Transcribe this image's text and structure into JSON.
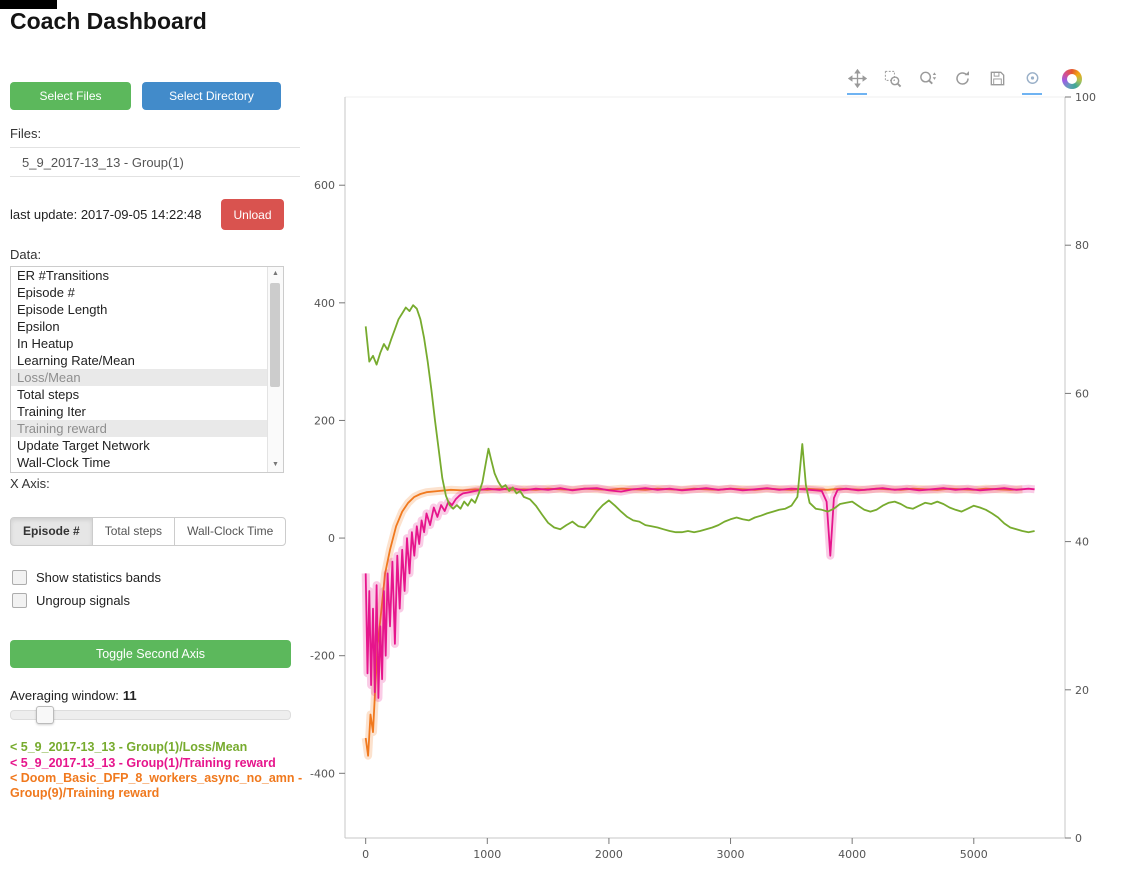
{
  "header": {
    "title": "Coach Dashboard"
  },
  "sidebar": {
    "select_files_label": "Select Files",
    "select_directory_label": "Select Directory",
    "files_label": "Files:",
    "file_selector_value": "5_9_2017-13_13 - Group(1)",
    "last_update": "last update: 2017-09-05 14:22:48",
    "unload_label": "Unload",
    "data_label": "Data:",
    "data_items": [
      {
        "label": "ER #Transitions",
        "selected": false
      },
      {
        "label": "Episode #",
        "selected": false
      },
      {
        "label": "Episode Length",
        "selected": false
      },
      {
        "label": "Epsilon",
        "selected": false
      },
      {
        "label": "In Heatup",
        "selected": false
      },
      {
        "label": "Learning Rate/Mean",
        "selected": false
      },
      {
        "label": "Loss/Mean",
        "selected": true
      },
      {
        "label": "Total steps",
        "selected": false
      },
      {
        "label": "Training Iter",
        "selected": false
      },
      {
        "label": "Training reward",
        "selected": true
      },
      {
        "label": "Update Target Network",
        "selected": false
      },
      {
        "label": "Wall-Clock Time",
        "selected": false
      }
    ],
    "scrollbar": {
      "up_icon": "▲",
      "down_icon": "▼"
    },
    "x_axis_label": "X Axis:",
    "x_axis_options": [
      {
        "label": "Episode #",
        "active": true
      },
      {
        "label": "Total steps",
        "active": false
      },
      {
        "label": "Wall-Clock Time",
        "active": false
      }
    ],
    "checkboxes": [
      {
        "label": "Show statistics bands",
        "checked": false
      },
      {
        "label": "Ungroup signals",
        "checked": false
      }
    ],
    "toggle_second_axis_label": "Toggle Second Axis",
    "averaging_window_label": "Averaging window:",
    "averaging_window_value": "11",
    "legend": [
      {
        "text": "< 5_9_2017-13_13 - Group(1)/Loss/Mean",
        "color": "#77ab2e"
      },
      {
        "text": "< 5_9_2017-13_13 - Group(1)/Training reward",
        "color": "#e6158c"
      },
      {
        "text": "< Doom_Basic_DFP_8_workers_async_no_amn - Group(9)/Training reward",
        "color": "#f0791e"
      }
    ]
  },
  "toolbar": {
    "tools": [
      {
        "name": "pan",
        "active": true
      },
      {
        "name": "box-zoom",
        "active": false
      },
      {
        "name": "wheel-zoom",
        "active": false
      },
      {
        "name": "reset",
        "active": false
      },
      {
        "name": "save",
        "active": false
      },
      {
        "name": "hover",
        "active": true
      }
    ]
  },
  "chart_data": {
    "type": "line",
    "title": "",
    "xlabel": "",
    "ylabel": "",
    "grid": false,
    "x_ticks": [
      0,
      1000,
      2000,
      3000,
      4000,
      5000
    ],
    "left_y_ticks": [
      -400,
      -200,
      0,
      200,
      400,
      600
    ],
    "right_y_ticks": [
      0,
      20,
      40,
      60,
      80,
      100
    ],
    "xlim": [
      -170,
      5750
    ],
    "left_ylim": [
      -510,
      750
    ],
    "right_ylim": [
      0,
      100
    ],
    "series": [
      {
        "name": "Doom_Basic_DFP_8_workers_async_no_amn - Group(9)/Training reward",
        "color": "#f0791e",
        "axis": "left",
        "band": true,
        "x": [
          0,
          20,
          40,
          60,
          80,
          100,
          130,
          160,
          200,
          250,
          300,
          350,
          400,
          450,
          500,
          600,
          700,
          800,
          900,
          1000,
          1100,
          1200,
          1300,
          1400,
          1500,
          1600,
          1700,
          1800,
          1900,
          2000,
          2100,
          2200,
          2300,
          2400,
          2500,
          2600,
          2700,
          2800,
          2900,
          3000,
          3100,
          3200,
          3300,
          3400,
          3500,
          3600,
          3700,
          3800,
          3900,
          4000,
          4100,
          4200,
          4300,
          4400,
          4500,
          4600,
          4700,
          4800,
          4900,
          5000,
          5100,
          5200,
          5300,
          5400
        ],
        "y": [
          -340,
          -370,
          -300,
          -330,
          -250,
          -180,
          -120,
          -60,
          -20,
          20,
          45,
          60,
          70,
          75,
          78,
          80,
          82,
          81,
          83,
          82,
          84,
          82,
          83,
          82,
          84,
          83,
          82,
          84,
          83,
          82,
          84,
          83,
          82,
          84,
          83,
          82,
          84,
          83,
          82,
          84,
          83,
          82,
          84,
          83,
          82,
          84,
          83,
          82,
          84,
          83,
          82,
          84,
          83,
          82,
          84,
          83,
          82,
          84,
          83,
          82,
          84,
          83,
          82,
          83
        ]
      },
      {
        "name": "5_9_2017-13_13 - Group(1)/Training reward",
        "color": "#e6158c",
        "axis": "left",
        "band": true,
        "x": [
          0,
          15,
          30,
          45,
          60,
          75,
          90,
          105,
          120,
          135,
          150,
          165,
          180,
          200,
          220,
          240,
          260,
          280,
          300,
          320,
          340,
          360,
          380,
          400,
          420,
          440,
          460,
          480,
          500,
          530,
          560,
          590,
          620,
          650,
          680,
          710,
          740,
          770,
          800,
          850,
          900,
          950,
          1000,
          1100,
          1200,
          1300,
          1400,
          1500,
          1600,
          1700,
          1800,
          1900,
          2000,
          2100,
          2200,
          2300,
          2400,
          2500,
          2600,
          2700,
          2800,
          2900,
          3000,
          3100,
          3200,
          3300,
          3400,
          3500,
          3600,
          3700,
          3750,
          3790,
          3820,
          3850,
          3880,
          3950,
          4050,
          4150,
          4250,
          4350,
          4450,
          4550,
          4650,
          4750,
          4850,
          4950,
          5050,
          5150,
          5250,
          5350,
          5450,
          5500
        ],
        "y": [
          -60,
          -230,
          -90,
          -250,
          -120,
          -262,
          -80,
          -272,
          -150,
          -240,
          -90,
          -200,
          -60,
          -150,
          -40,
          -180,
          -30,
          -120,
          -20,
          -90,
          0,
          -60,
          10,
          -30,
          20,
          -10,
          30,
          10,
          42,
          22,
          52,
          36,
          56,
          46,
          62,
          56,
          66,
          72,
          76,
          78,
          80,
          82,
          84,
          82,
          85,
          81,
          84,
          82,
          85,
          81,
          84,
          85,
          81,
          79,
          83,
          85,
          82,
          84,
          81,
          83,
          85,
          82,
          84,
          81,
          83,
          85,
          82,
          84,
          83,
          81,
          80,
          62,
          -30,
          68,
          82,
          84,
          81,
          83,
          85,
          82,
          84,
          81,
          83,
          85,
          82,
          84,
          81,
          83,
          85,
          82,
          84,
          83
        ]
      },
      {
        "name": "5_9_2017-13_13 - Group(1)/Loss/Mean",
        "color": "#77ab2e",
        "axis": "left",
        "band": false,
        "x": [
          0,
          30,
          60,
          90,
          120,
          150,
          180,
          210,
          240,
          270,
          300,
          330,
          360,
          390,
          420,
          450,
          480,
          510,
          540,
          570,
          600,
          630,
          660,
          690,
          720,
          750,
          780,
          810,
          840,
          870,
          900,
          930,
          960,
          990,
          1010,
          1030,
          1060,
          1090,
          1120,
          1150,
          1180,
          1210,
          1240,
          1270,
          1300,
          1350,
          1400,
          1450,
          1500,
          1550,
          1600,
          1650,
          1700,
          1750,
          1800,
          1850,
          1900,
          1950,
          2000,
          2050,
          2100,
          2150,
          2200,
          2250,
          2300,
          2350,
          2400,
          2450,
          2500,
          2550,
          2600,
          2650,
          2700,
          2750,
          2800,
          2850,
          2900,
          2950,
          3000,
          3050,
          3100,
          3150,
          3200,
          3250,
          3300,
          3350,
          3400,
          3450,
          3500,
          3550,
          3590,
          3620,
          3650,
          3700,
          3750,
          3800,
          3850,
          3900,
          3950,
          4000,
          4050,
          4100,
          4150,
          4200,
          4250,
          4300,
          4350,
          4400,
          4450,
          4500,
          4550,
          4600,
          4650,
          4700,
          4750,
          4800,
          4850,
          4900,
          4950,
          5000,
          5050,
          5100,
          5150,
          5200,
          5250,
          5300,
          5350,
          5400,
          5450,
          5500
        ],
        "y": [
          360,
          300,
          310,
          295,
          315,
          330,
          320,
          338,
          355,
          372,
          382,
          392,
          386,
          396,
          390,
          372,
          340,
          300,
          252,
          200,
          152,
          102,
          72,
          56,
          50,
          56,
          50,
          62,
          55,
          66,
          60,
          76,
          95,
          130,
          152,
          135,
          110,
          96,
          86,
          90,
          80,
          86,
          76,
          80,
          70,
          66,
          55,
          40,
          26,
          18,
          15,
          22,
          28,
          20,
          18,
          30,
          45,
          56,
          64,
          55,
          45,
          36,
          30,
          28,
          22,
          20,
          18,
          15,
          12,
          10,
          10,
          12,
          10,
          12,
          15,
          18,
          22,
          28,
          32,
          35,
          32,
          30,
          35,
          38,
          42,
          45,
          48,
          50,
          55,
          70,
          160,
          90,
          60,
          50,
          48,
          45,
          50,
          58,
          60,
          62,
          55,
          48,
          45,
          48,
          55,
          60,
          62,
          58,
          52,
          50,
          55,
          60,
          58,
          62,
          58,
          52,
          48,
          45,
          50,
          55,
          52,
          48,
          42,
          35,
          25,
          18,
          15,
          12,
          10,
          12
        ]
      }
    ]
  }
}
